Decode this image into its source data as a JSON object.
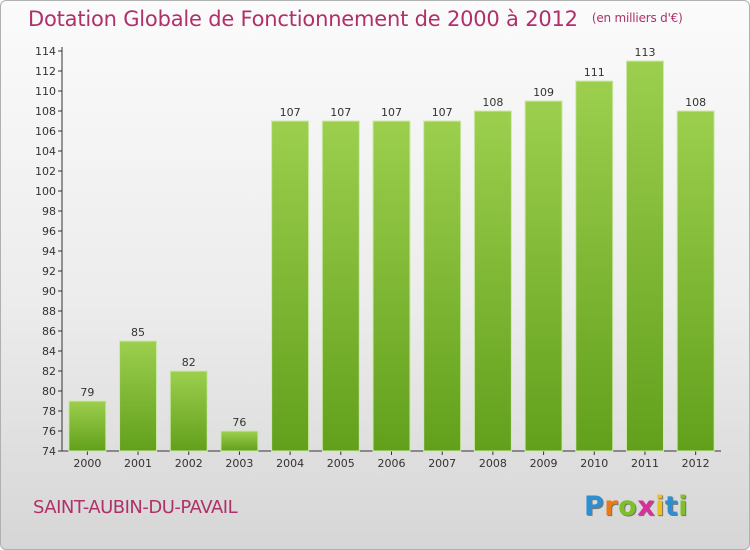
{
  "header": {
    "title": "Dotation Globale de Fonctionnement de 2000 à 2012",
    "unit": "(en milliers d'€)"
  },
  "footer": {
    "commune": "SAINT-AUBIN-DU-PAVAIL",
    "brand": "Proxiti"
  },
  "colors": {
    "title": "#b0306a",
    "bar_light": "#9ccf4e",
    "bar_dark": "#62a01c"
  },
  "chart_data": {
    "type": "bar",
    "title": "Dotation Globale de Fonctionnement de 2000 à 2012",
    "subtitle": "(en milliers d'€)",
    "xlabel": "",
    "ylabel": "",
    "categories": [
      "2000",
      "2001",
      "2002",
      "2003",
      "2004",
      "2005",
      "2006",
      "2007",
      "2008",
      "2009",
      "2010",
      "2011",
      "2012"
    ],
    "values": [
      79,
      85,
      82,
      76,
      107,
      107,
      107,
      107,
      108,
      109,
      111,
      113,
      108
    ],
    "ylim": [
      74,
      114
    ],
    "yticks": [
      74,
      76,
      78,
      80,
      82,
      84,
      86,
      88,
      90,
      92,
      94,
      96,
      98,
      100,
      102,
      104,
      106,
      108,
      110,
      112,
      114
    ],
    "grid": false,
    "legend": "none"
  }
}
